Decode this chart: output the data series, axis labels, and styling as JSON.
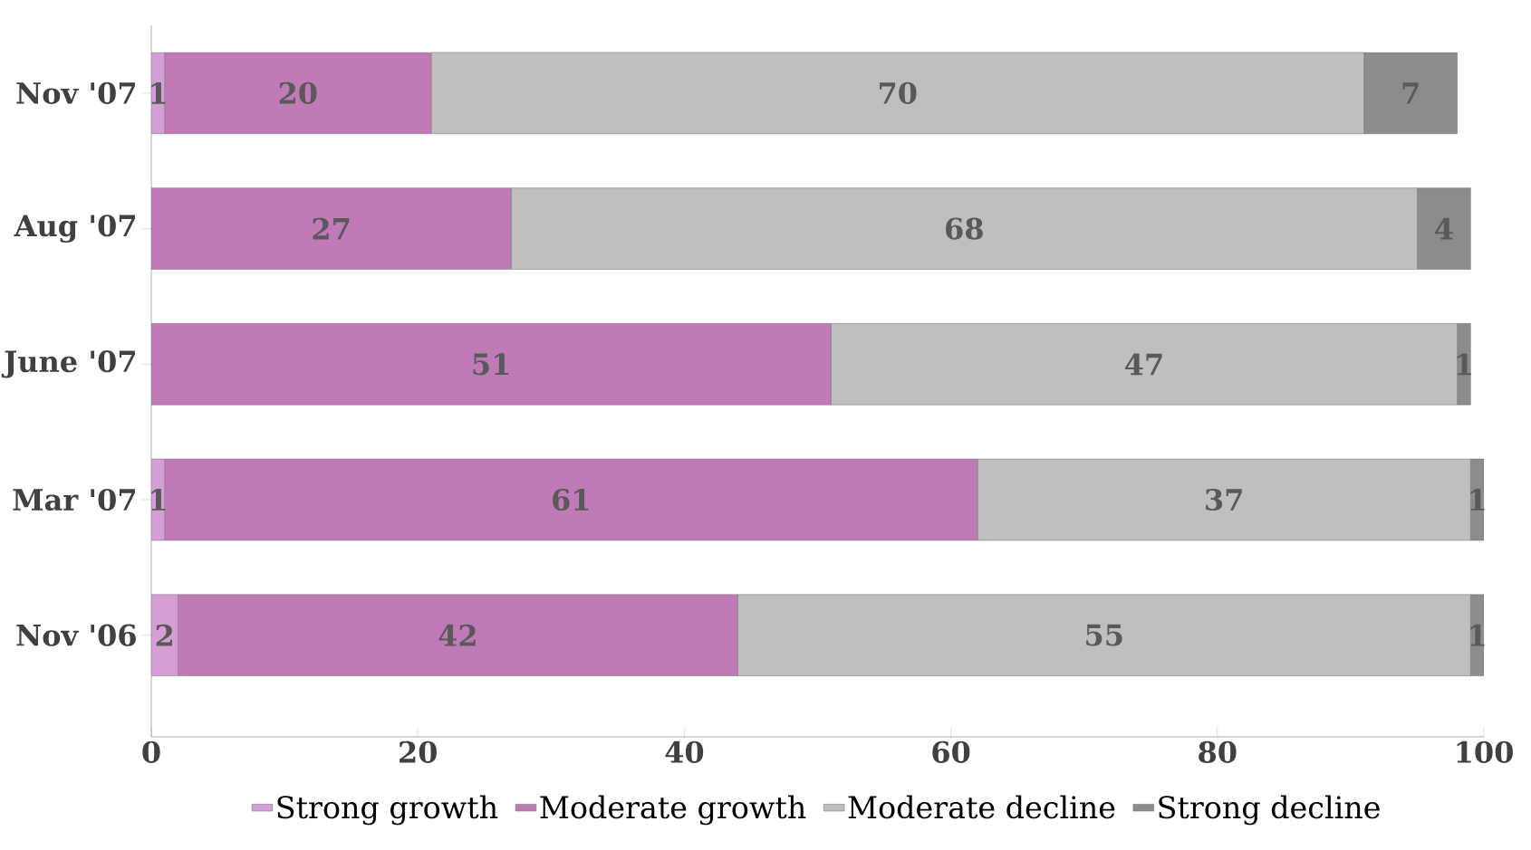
{
  "chart_data": {
    "type": "bar",
    "orientation": "horizontal",
    "stacked": true,
    "categories": [
      "Nov '07",
      "Aug '07",
      "June '07",
      "Mar '07",
      "Nov '06"
    ],
    "series": [
      {
        "name": "Strong growth",
        "color": "#d59ed6",
        "values": [
          1,
          null,
          null,
          1,
          2
        ]
      },
      {
        "name": "Moderate growth",
        "color": "#c07ab8",
        "values": [
          20,
          27,
          51,
          61,
          42
        ]
      },
      {
        "name": "Moderate decline",
        "color": "#bfbfbf",
        "values": [
          70,
          68,
          47,
          37,
          55
        ]
      },
      {
        "name": "Strong decline",
        "color": "#8c8c8c",
        "values": [
          7,
          4,
          1,
          1,
          1
        ]
      }
    ],
    "xlim": [
      0,
      100
    ],
    "xticks": [
      0,
      20,
      40,
      60,
      80,
      100
    ],
    "data_labels": true,
    "legend": "bottom",
    "grid": false
  }
}
